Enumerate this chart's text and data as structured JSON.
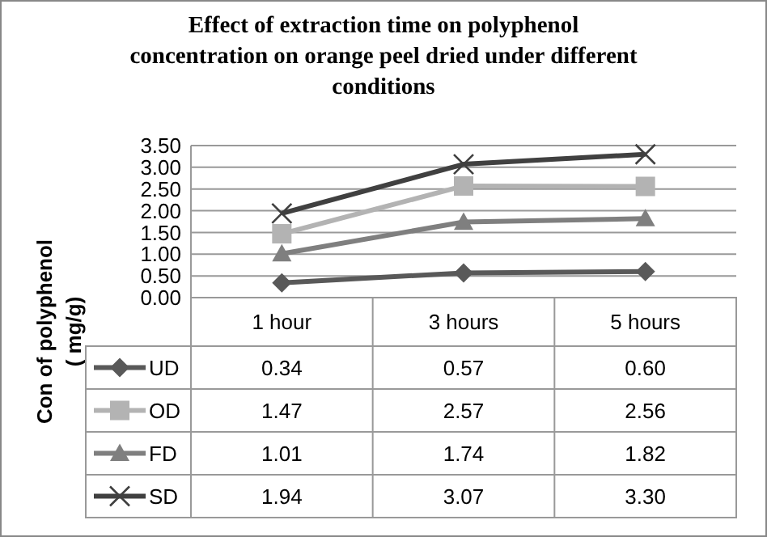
{
  "chart_data": {
    "type": "line",
    "title": "Effect of  extraction time on polyphenol\nconcentration on orange peel dried under different\nconditions",
    "ylabel": "Con of polyphenol\n( mg/g)",
    "categories": [
      "1 hour",
      "3 hours",
      "5 hours"
    ],
    "series": [
      {
        "name": "UD",
        "color": "#595959",
        "marker": "diamond",
        "values": [
          0.34,
          0.57,
          0.6
        ],
        "value_labels": [
          "0.34",
          "0.57",
          "0.60"
        ]
      },
      {
        "name": "OD",
        "color": "#b3b3b3",
        "marker": "square",
        "values": [
          1.47,
          2.57,
          2.56
        ],
        "value_labels": [
          "1.47",
          "2.57",
          "2.56"
        ]
      },
      {
        "name": "FD",
        "color": "#7f7f7f",
        "marker": "triangle",
        "values": [
          1.01,
          1.74,
          1.82
        ],
        "value_labels": [
          "1.01",
          "1.74",
          "1.82"
        ]
      },
      {
        "name": "SD",
        "color": "#404040",
        "marker": "cross",
        "values": [
          1.94,
          3.07,
          3.3
        ],
        "value_labels": [
          "1.94",
          "3.07",
          "3.30"
        ]
      }
    ],
    "ylim": [
      0,
      3.5
    ],
    "yticks": [
      {
        "value": 0,
        "label": "0.00"
      },
      {
        "value": 0.5,
        "label": "0.50"
      },
      {
        "value": 1,
        "label": "1.00"
      },
      {
        "value": 1.5,
        "label": "1.50"
      },
      {
        "value": 2,
        "label": "2.00"
      },
      {
        "value": 2.5,
        "label": "2.50"
      },
      {
        "value": 3,
        "label": "3.00"
      },
      {
        "value": 3.5,
        "label": "3.50"
      }
    ],
    "grid": "y",
    "legend": "bottom"
  }
}
